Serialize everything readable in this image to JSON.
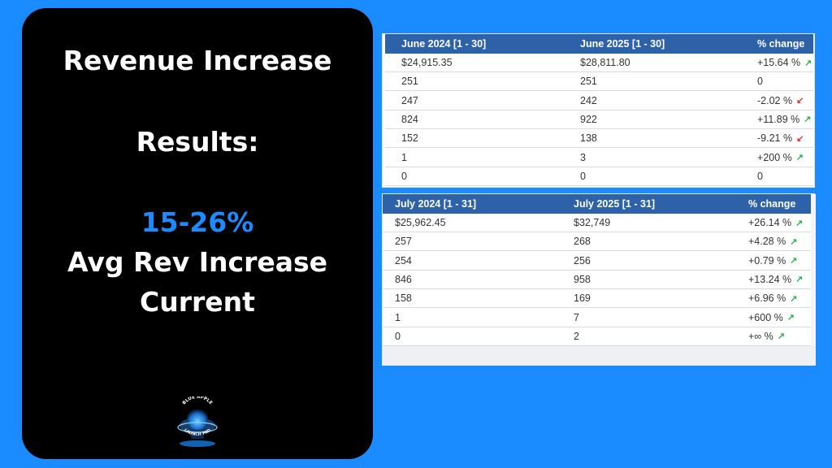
{
  "slide": {
    "title": "Revenue Increase",
    "results": "Results:",
    "percent_range": "15-26%",
    "avg_line": "Avg Rev Increase",
    "current_line": "Current",
    "logo": {
      "icon": "blue-apple-launch-pad-logo",
      "text_top": "BLUE APPLE",
      "text_bottom": "LAUNCH PAD"
    },
    "colors": {
      "background": "#1a8cff",
      "panel": "#000000",
      "accent": "#1a8cff",
      "table_header": "#2e62a8",
      "up": "#2db34a",
      "down": "#e0322f"
    }
  },
  "tables": [
    {
      "headers": [
        "June 2024 [1 - 30]",
        "June 2025 [1 - 30]",
        "% change"
      ],
      "rows": [
        {
          "a": "$24,915.35",
          "b": "$28,811.80",
          "change": "+15.64 %",
          "dir": "up"
        },
        {
          "a": "251",
          "b": "251",
          "change": "0",
          "dir": "none"
        },
        {
          "a": "247",
          "b": "242",
          "change": "-2.02 %",
          "dir": "down"
        },
        {
          "a": "824",
          "b": "922",
          "change": "+11.89 %",
          "dir": "up"
        },
        {
          "a": "152",
          "b": "138",
          "change": "-9.21 %",
          "dir": "down"
        },
        {
          "a": "1",
          "b": "3",
          "change": "+200 %",
          "dir": "up"
        },
        {
          "a": "0",
          "b": "0",
          "change": "0",
          "dir": "none"
        }
      ]
    },
    {
      "headers": [
        "July 2024 [1 - 31]",
        "July 2025 [1 - 31]",
        "% change"
      ],
      "rows": [
        {
          "a": "$25,962.45",
          "b": "$32,749",
          "change": "+26.14 %",
          "dir": "up"
        },
        {
          "a": "257",
          "b": "268",
          "change": "+4.28 %",
          "dir": "up"
        },
        {
          "a": "254",
          "b": "256",
          "change": "+0.79 %",
          "dir": "up"
        },
        {
          "a": "846",
          "b": "958",
          "change": "+13.24 %",
          "dir": "up"
        },
        {
          "a": "158",
          "b": "169",
          "change": "+6.96 %",
          "dir": "up"
        },
        {
          "a": "1",
          "b": "7",
          "change": "+600 %",
          "dir": "up"
        },
        {
          "a": "0",
          "b": "2",
          "change": "+∞ %",
          "dir": "up"
        }
      ]
    }
  ]
}
